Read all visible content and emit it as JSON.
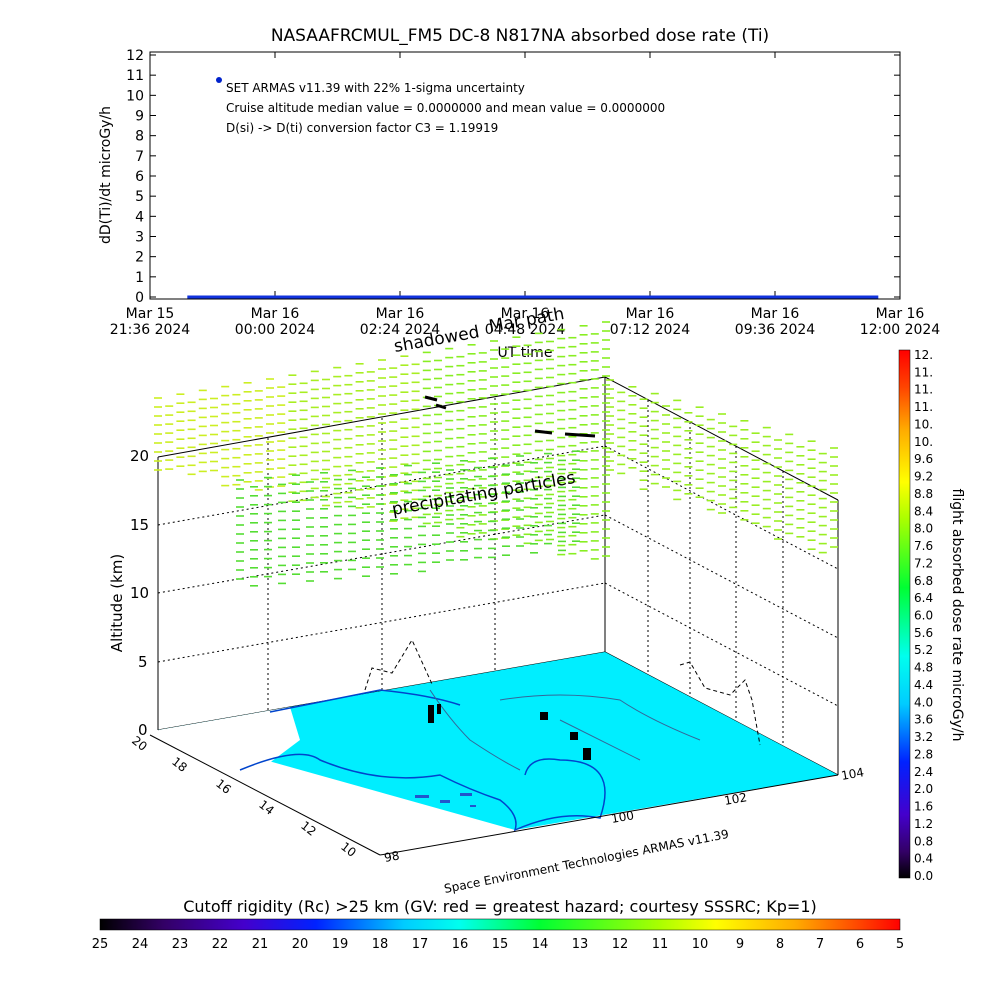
{
  "top_chart": {
    "title": "NASAAFRCMUL_FM5 DC-8   N817NA absorbed dose rate (Ti)",
    "ylabel": "dD(Ti)/dt microGy/h",
    "xlabel": "UT time",
    "legend_lines": [
      "SET ARMAS v11.39 with 22% 1-sigma uncertainty",
      "Cruise altitude median value = 0.0000000 and mean value = 0.0000000",
      "D(si) -> D(ti) conversion factor C3 = 1.19919"
    ],
    "legend_marker_color": "#0022cc",
    "y_ticks": [
      "0",
      "1",
      "2",
      "3",
      "4",
      "5",
      "6",
      "7",
      "8",
      "9",
      "10",
      "11",
      "12"
    ],
    "x_ticks": [
      {
        "l1": "Mar 15",
        "l2": "21:36 2024"
      },
      {
        "l1": "Mar 16",
        "l2": "00:00 2024"
      },
      {
        "l1": "Mar 16",
        "l2": "02:24 2024"
      },
      {
        "l1": "Mar 16",
        "l2": "04:48 2024"
      },
      {
        "l1": "Mar 16",
        "l2": "07:12 2024"
      },
      {
        "l1": "Mar 16",
        "l2": "09:36 2024"
      },
      {
        "l1": "Mar 16",
        "l2": "12:00 2024"
      }
    ],
    "series_color": "#1133dd"
  },
  "chart_data": [
    {
      "type": "line",
      "title": "NASAAFRCMUL_FM5 DC-8   N817NA absorbed dose rate (Ti)",
      "xlabel": "UT time",
      "ylabel": "dD(Ti)/dt microGy/h",
      "x_range": [
        "Mar 15 21:36 2024",
        "Mar 16 12:00 2024"
      ],
      "ylim": [
        0,
        12
      ],
      "series": [
        {
          "name": "SET ARMAS v11.39 with 22% 1-sigma uncertainty",
          "x": [
            "Mar 15 22:19 2024",
            "Mar 16 11:35 2024"
          ],
          "values": [
            0,
            0
          ]
        }
      ]
    },
    {
      "type": "scatter",
      "zlabel": "Altitude (km)",
      "z_ticks": [
        "0",
        "5",
        "10",
        "15",
        "20"
      ],
      "lat_ticks": [
        "10",
        "12",
        "14",
        "16",
        "18",
        "20"
      ],
      "lon_ticks": [
        "98",
        "100",
        "102",
        "104"
      ],
      "colorbar_label": "flight absorbed dose rate microGy/h",
      "colorbar_ticks": [
        "0.0",
        "0.4",
        "0.8",
        "1.2",
        "1.6",
        "2.0",
        "2.4",
        "2.8",
        "3.2",
        "3.6",
        "4.0",
        "4.4",
        "4.8",
        "5.2",
        "5.6",
        "6.0",
        "6.4",
        "6.8",
        "7.2",
        "7.6",
        "8.0",
        "8.4",
        "8.8",
        "9.2",
        "9.6",
        "10.",
        "10.",
        "11.",
        "11.",
        "11.",
        "12."
      ],
      "bottom_colorbar_label": "Cutoff rigidity (Rc) >25 km (GV: red = greatest hazard; courtesy SSSRC; Kp=1)",
      "bottom_colorbar_ticks": [
        "25",
        "24",
        "23",
        "22",
        "21",
        "20",
        "19",
        "18",
        "17",
        "16",
        "15",
        "14",
        "13",
        "12",
        "11",
        "10",
        "9",
        "8",
        "7",
        "6",
        "5"
      ]
    }
  ],
  "scene": {
    "label_precipitating": "precipitating particles",
    "label_shadowed": "shadowed",
    "label_mar_path": "Mar path",
    "credit": "Space Environment Technologies ARMAS v11.39",
    "land_color": "#00eeff",
    "sea_color": "#ffffff"
  }
}
